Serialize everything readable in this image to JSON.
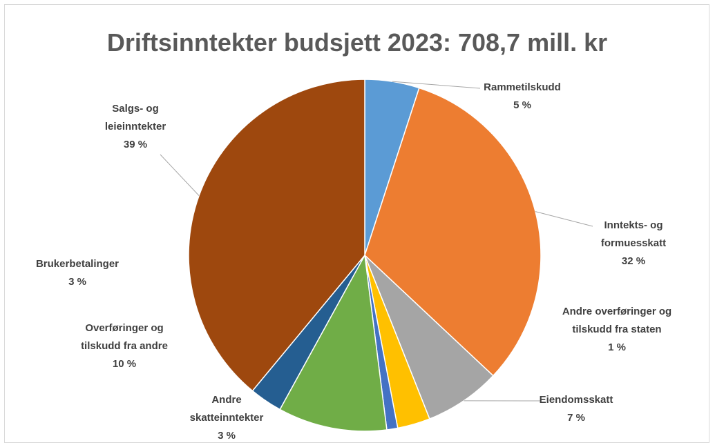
{
  "chart_data": {
    "type": "pie",
    "title": "Driftsinntekter budsjett 2023: 708,7 mill. kr",
    "categories": [
      "Rammetilskudd",
      "Inntekts- og formuesskatt",
      "Eiendomsskatt",
      "Andre skatteinntekter",
      "Andre overføringer og tilskudd fra staten",
      "Overføringer og tilskudd fra andre",
      "Brukerbetalinger",
      "Salgs- og leieinntekter"
    ],
    "values": [
      5,
      32,
      7,
      3,
      1,
      10,
      3,
      39
    ],
    "value_labels": [
      "5 %",
      "32 %",
      "7 %",
      "3 %",
      "1 %",
      "10 %",
      "3 %",
      "39 %"
    ],
    "colors": [
      "#5b9bd5",
      "#ed7d31",
      "#a5a5a5",
      "#ffc000",
      "#4472c4",
      "#70ad47",
      "#255e91",
      "#9e480e"
    ]
  }
}
